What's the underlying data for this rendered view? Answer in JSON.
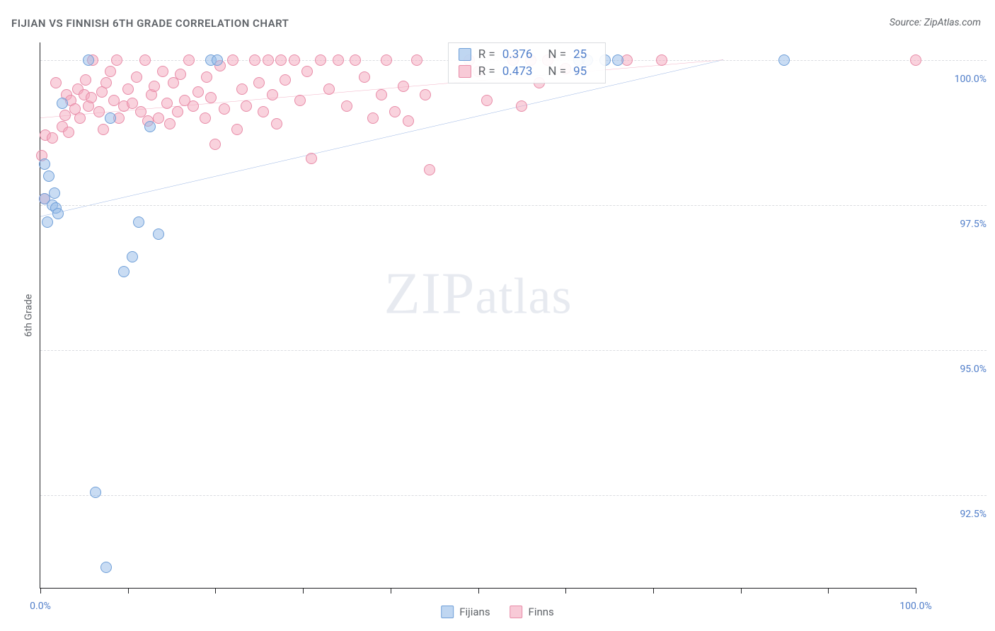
{
  "title": "FIJIAN VS FINNISH 6TH GRADE CORRELATION CHART",
  "source": "Source: ZipAtlas.com",
  "y_axis_label": "6th Grade",
  "watermark": {
    "bold": "ZIP",
    "light": "atlas"
  },
  "chart": {
    "type": "scatter",
    "background_color": "#ffffff",
    "grid_color": "#dadce0",
    "axis_color": "#202124",
    "label_color": "#4f7dc9",
    "text_color": "#5f6368",
    "marker_radius": 8,
    "x_range": [
      0,
      100
    ],
    "y_range": [
      90.9,
      100.3
    ],
    "x_ticks": [
      0,
      10,
      20,
      30,
      40,
      50,
      60,
      70,
      80,
      90,
      100
    ],
    "x_tick_labels": {
      "0": "0.0%",
      "100": "100.0%"
    },
    "y_ticks": [
      92.5,
      95.0,
      97.5,
      100.0
    ],
    "y_tick_labels": [
      "92.5%",
      "95.0%",
      "97.5%",
      "100.0%"
    ],
    "series": {
      "fijians": {
        "label": "Fijians",
        "fill": "rgba(148,186,231,0.5)",
        "stroke": "#6f9fd8",
        "trend_color": "#2e66c7",
        "trend": {
          "x1": 0,
          "y1": 97.3,
          "x2": 78,
          "y2": 100.0
        },
        "stats": {
          "r": "0.376",
          "n": "25"
        },
        "points": [
          [
            0.5,
            97.6
          ],
          [
            0.8,
            97.2
          ],
          [
            1.0,
            98.0
          ],
          [
            1.4,
            97.5
          ],
          [
            1.8,
            97.45
          ],
          [
            1.6,
            97.7
          ],
          [
            5.5,
            100.0
          ],
          [
            6.3,
            92.55
          ],
          [
            7.5,
            91.25
          ],
          [
            8.0,
            99.0
          ],
          [
            9.5,
            96.35
          ],
          [
            10.5,
            96.6
          ],
          [
            11.2,
            97.2
          ],
          [
            12.5,
            98.85
          ],
          [
            13.5,
            97.0
          ],
          [
            19.5,
            100.0
          ],
          [
            20.2,
            100.0
          ],
          [
            61.5,
            100.0
          ],
          [
            62.5,
            100.0
          ],
          [
            64.5,
            100.0
          ],
          [
            66.0,
            100.0
          ],
          [
            85.0,
            100.0
          ],
          [
            0.5,
            98.2
          ],
          [
            2.0,
            97.35
          ],
          [
            2.5,
            99.25
          ]
        ]
      },
      "finns": {
        "label": "Finns",
        "fill": "rgba(244,166,188,0.5)",
        "stroke": "#e88ca8",
        "trend_color": "#e26088",
        "trend": {
          "x1": 0,
          "y1": 99.0,
          "x2": 78,
          "y2": 100.0
        },
        "stats": {
          "r": "0.473",
          "n": "95"
        },
        "points": [
          [
            0.2,
            98.35
          ],
          [
            0.5,
            97.6
          ],
          [
            0.6,
            98.7
          ],
          [
            1.4,
            98.65
          ],
          [
            1.8,
            99.6
          ],
          [
            2.5,
            98.85
          ],
          [
            2.8,
            99.05
          ],
          [
            3.0,
            99.4
          ],
          [
            3.2,
            98.75
          ],
          [
            3.5,
            99.3
          ],
          [
            4.0,
            99.15
          ],
          [
            4.3,
            99.5
          ],
          [
            4.5,
            99.0
          ],
          [
            5.0,
            99.4
          ],
          [
            5.2,
            99.65
          ],
          [
            5.5,
            99.2
          ],
          [
            5.8,
            99.35
          ],
          [
            6.0,
            100.0
          ],
          [
            6.7,
            99.1
          ],
          [
            7.0,
            99.45
          ],
          [
            7.2,
            98.8
          ],
          [
            7.5,
            99.6
          ],
          [
            8.0,
            99.8
          ],
          [
            8.4,
            99.3
          ],
          [
            8.7,
            100.0
          ],
          [
            9.0,
            99.0
          ],
          [
            9.5,
            99.2
          ],
          [
            10.0,
            99.5
          ],
          [
            10.5,
            99.25
          ],
          [
            11.0,
            99.7
          ],
          [
            11.5,
            99.1
          ],
          [
            12.0,
            100.0
          ],
          [
            12.3,
            98.95
          ],
          [
            12.7,
            99.4
          ],
          [
            13.0,
            99.55
          ],
          [
            13.5,
            99.0
          ],
          [
            14.0,
            99.8
          ],
          [
            14.5,
            99.25
          ],
          [
            14.8,
            98.9
          ],
          [
            15.2,
            99.6
          ],
          [
            15.7,
            99.1
          ],
          [
            16.0,
            99.75
          ],
          [
            16.5,
            99.3
          ],
          [
            17.0,
            100.0
          ],
          [
            17.5,
            99.2
          ],
          [
            18.0,
            99.45
          ],
          [
            18.8,
            99.0
          ],
          [
            19.0,
            99.7
          ],
          [
            19.5,
            99.35
          ],
          [
            20.0,
            98.55
          ],
          [
            20.5,
            99.9
          ],
          [
            21.0,
            99.15
          ],
          [
            22.0,
            100.0
          ],
          [
            22.5,
            98.8
          ],
          [
            23.0,
            99.5
          ],
          [
            23.5,
            99.2
          ],
          [
            24.5,
            100.0
          ],
          [
            25.0,
            99.6
          ],
          [
            25.5,
            99.1
          ],
          [
            26.0,
            100.0
          ],
          [
            26.5,
            99.4
          ],
          [
            27.0,
            98.9
          ],
          [
            27.5,
            100.0
          ],
          [
            28.0,
            99.65
          ],
          [
            29.0,
            100.0
          ],
          [
            29.7,
            99.3
          ],
          [
            30.5,
            99.8
          ],
          [
            31.0,
            98.3
          ],
          [
            32.0,
            100.0
          ],
          [
            33.0,
            99.5
          ],
          [
            34.0,
            100.0
          ],
          [
            35.0,
            99.2
          ],
          [
            36.0,
            100.0
          ],
          [
            37.0,
            99.7
          ],
          [
            38.0,
            99.0
          ],
          [
            39.0,
            99.4
          ],
          [
            39.5,
            100.0
          ],
          [
            40.5,
            99.1
          ],
          [
            41.5,
            99.55
          ],
          [
            42.0,
            98.95
          ],
          [
            43.0,
            100.0
          ],
          [
            44.0,
            99.4
          ],
          [
            44.5,
            98.1
          ],
          [
            49.0,
            100.0
          ],
          [
            50.0,
            99.8
          ],
          [
            51.0,
            99.3
          ],
          [
            54.0,
            100.0
          ],
          [
            55.0,
            99.2
          ],
          [
            56.0,
            100.0
          ],
          [
            57.0,
            99.6
          ],
          [
            58.0,
            100.0
          ],
          [
            60.0,
            99.85
          ],
          [
            67.0,
            100.0
          ],
          [
            71.0,
            100.0
          ],
          [
            100.0,
            100.0
          ]
        ]
      }
    }
  },
  "stats_labels": {
    "r_label": "R =",
    "n_label": "N ="
  }
}
